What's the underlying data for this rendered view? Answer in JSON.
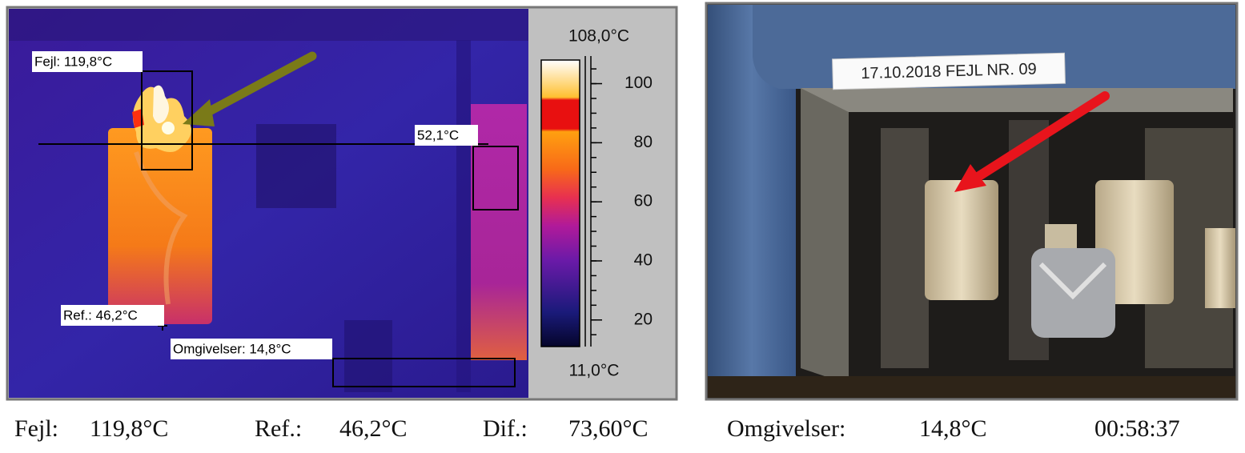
{
  "thermal": {
    "labels": {
      "fault": "Fejl: 119,8°C",
      "line": "52,1°C",
      "reference": "Ref.: 46,2°C",
      "ambient": "Omgivelser: 14,8°C"
    },
    "scale": {
      "max": {
        "value": 108,
        "label": "108,0°C"
      },
      "min": {
        "value": 11,
        "label": "11,0°C"
      },
      "ticks": [
        20,
        40,
        60,
        80,
        100
      ]
    }
  },
  "photo": {
    "sticker": "17.10.2018 FEJL NR. 09"
  },
  "footer": {
    "fault_label": "Fejl:",
    "fault_value": "119,8°C",
    "ref_label": "Ref.:",
    "ref_value": "46,2°C",
    "diff_label": "Dif.:",
    "diff_value": "73,60°C",
    "ambient_label": "Omgivelser:",
    "ambient_value": "14,8°C",
    "time": "00:58:37"
  }
}
